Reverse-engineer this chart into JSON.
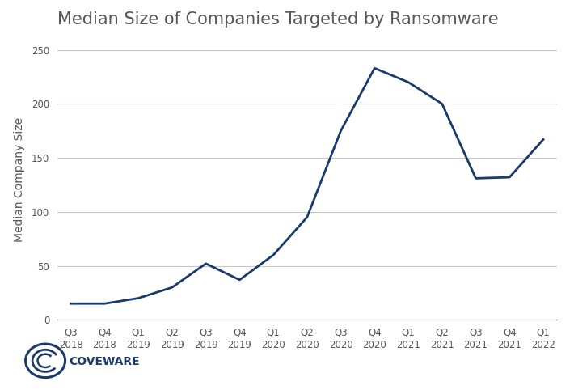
{
  "title": "Median Size of Companies Targeted by Ransomware",
  "ylabel": "Median Company Size",
  "xlabel": "",
  "x_labels": [
    "Q3\n2018",
    "Q4\n2018",
    "Q1\n2019",
    "Q2\n2019",
    "Q3\n2019",
    "Q4\n2019",
    "Q1\n2020",
    "Q2\n2020",
    "Q3\n2020",
    "Q4\n2020",
    "Q1\n2021",
    "Q2\n2021",
    "Q3\n2021",
    "Q4\n2021",
    "Q1\n2022"
  ],
  "values": [
    15,
    15,
    20,
    30,
    52,
    37,
    60,
    95,
    175,
    233,
    220,
    200,
    131,
    132,
    167
  ],
  "line_color": "#1a3a6b",
  "line_width": 2.0,
  "ylim": [
    0,
    260
  ],
  "yticks": [
    0,
    50,
    100,
    150,
    200,
    250
  ],
  "grid_color": "#c8c8c8",
  "background_color": "#ffffff",
  "title_fontsize": 15,
  "axis_label_fontsize": 10,
  "tick_fontsize": 8.5,
  "logo_text": "COVEWARE",
  "logo_circle_color": "#1a3a6b",
  "logo_text_color": "#1a3a6b"
}
